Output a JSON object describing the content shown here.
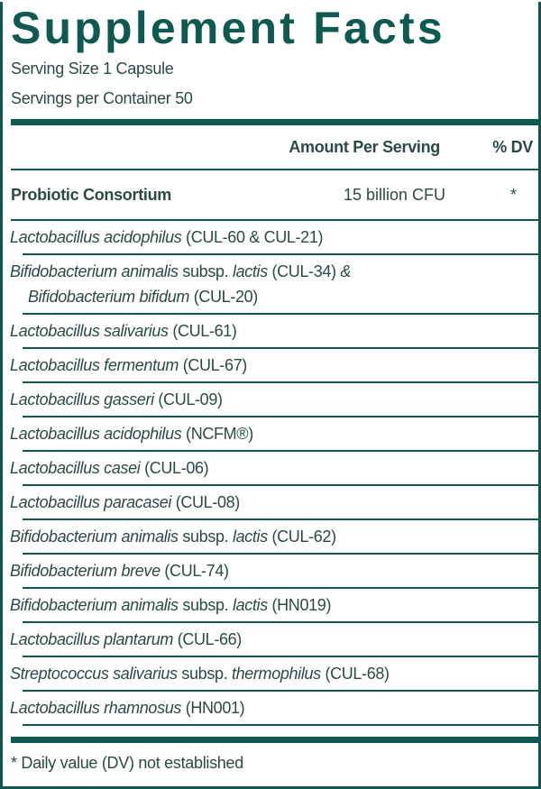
{
  "header": {
    "title": "Supplement Facts",
    "serving_size": "Serving Size 1 Capsule",
    "servings_per_container": "Servings per Container 50"
  },
  "table": {
    "columns": [
      "Amount Per Serving",
      "% DV"
    ],
    "blend": {
      "name": "Probiotic Consortium",
      "amount": "15 billion CFU",
      "dv": "*"
    },
    "strains": [
      [
        "Lactobacillus acidophilus",
        "(CUL-60 & CUL-21)"
      ],
      [
        "Bifidobacterium animalis",
        "subsp.",
        "lactis",
        "(CUL-34)",
        "& Bifidobacterium bifidum",
        "(CUL-20)"
      ],
      [
        "Lactobacillus salivarius",
        "(CUL-61)"
      ],
      [
        "Lactobacillus fermentum",
        "(CUL-67)"
      ],
      [
        "Lactobacillus gasseri",
        "(CUL-09)"
      ],
      [
        "Lactobacillus acidophilus",
        "(NCFM®)"
      ],
      [
        "Lactobacillus casei",
        "(CUL-06)"
      ],
      [
        "Lactobacillus paracasei",
        "(CUL-08)"
      ],
      [
        "Bifidobacterium animalis",
        "subsp.",
        "lactis",
        "(CUL-62)"
      ],
      [
        "Bifidobacterium breve",
        "(CUL-74)"
      ],
      [
        "Bifidobacterium animalis",
        "subsp.",
        "lactis",
        "(HN019)"
      ],
      [
        "Lactobacillus plantarum",
        "(CUL-66)"
      ],
      [
        "Streptococcus salivarius",
        "subsp.",
        "thermophilus",
        "(CUL-68)"
      ],
      [
        "Lactobacillus rhamnosus",
        "(HN001)"
      ]
    ]
  },
  "footnote": "* Daily value (DV) not established"
}
